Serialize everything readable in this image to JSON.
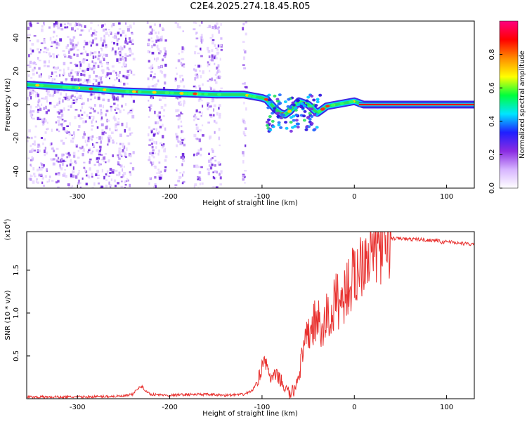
{
  "page_title": "C2E4.2025.274.18.45.R05",
  "chart_data": [
    {
      "id": "spectrogram",
      "type": "heatmap",
      "title": "C2E4.2025.274.18.45.R05",
      "xlabel": "Height of straight line (km)",
      "ylabel": "Frequency (Hz)",
      "xlim": [
        -355,
        130
      ],
      "ylim": [
        -50,
        50
      ],
      "x_ticks": [
        -300,
        -200,
        -100,
        0,
        100
      ],
      "x_tick_labels": [
        "-300",
        "-200",
        "-100",
        "0",
        "100"
      ],
      "y_ticks": [
        -40,
        -20,
        0,
        20,
        40
      ],
      "y_tick_labels": [
        "-40",
        "-20",
        "0",
        "20",
        "40"
      ],
      "grid": false,
      "colorbar": {
        "label": "Normalized spectral amplitude",
        "range": [
          0,
          1
        ],
        "ticks": [
          0.0,
          0.2,
          0.4,
          0.6,
          0.8
        ],
        "tick_labels": [
          "0.0",
          "0.2",
          "0.4",
          "0.6",
          "0.8"
        ],
        "colors": [
          "#ffffff",
          "#d7b5ff",
          "#8a2be2",
          "#1f1fff",
          "#00e5ff",
          "#00ff3c",
          "#ffff00",
          "#ff8c00",
          "#ff0000",
          "#ff0080"
        ]
      },
      "carrier_ridge": {
        "x": [
          -355,
          -300,
          -250,
          -200,
          -150,
          -120,
          -100,
          -95,
          -90,
          -85,
          -80,
          -75,
          -70,
          -60,
          -50,
          -40,
          -30,
          -20,
          -10,
          0,
          10,
          50,
          100,
          130
        ],
        "y": [
          12,
          10,
          8,
          7,
          6,
          6,
          4,
          3,
          0,
          -3,
          -5,
          -6,
          -4,
          2,
          0,
          -5,
          -1,
          0,
          1,
          2,
          0,
          0,
          0,
          0
        ]
      },
      "noise_regions_x": [
        [
          -355,
          -240
        ],
        [
          -225,
          -205
        ],
        [
          -195,
          -185
        ],
        [
          -175,
          -165
        ],
        [
          -160,
          -145
        ],
        [
          -122,
          -118
        ]
      ]
    },
    {
      "id": "snr",
      "type": "line",
      "xlabel": "Height of straight line (km)",
      "ylabel": "SNR (10 * v/v)",
      "y_multiplier": "(x10⁴)",
      "y_multiplier_base": "(x10",
      "y_multiplier_exp": "4",
      "y_multiplier_close": ")",
      "xlim": [
        -355,
        130
      ],
      "ylim": [
        0,
        1.95
      ],
      "x_ticks": [
        -300,
        -200,
        -100,
        0,
        100
      ],
      "x_tick_labels": [
        "-300",
        "-200",
        "-100",
        "0",
        "100"
      ],
      "y_ticks": [
        0.5,
        1.0,
        1.5
      ],
      "y_tick_labels": [
        "0.5",
        "1.0",
        "1.5"
      ],
      "grid": false,
      "series": [
        {
          "color": "#e8302e",
          "x": [
            -355,
            -300,
            -250,
            -240,
            -235,
            -230,
            -225,
            -220,
            -200,
            -180,
            -160,
            -140,
            -120,
            -110,
            -102,
            -98,
            -95,
            -90,
            -85,
            -80,
            -75,
            -70,
            -65,
            -60,
            -55,
            -50,
            -45,
            -40,
            -35,
            -30,
            -25,
            -20,
            -15,
            -10,
            -5,
            0,
            5,
            10,
            20,
            30,
            40,
            50,
            60,
            70,
            80,
            90,
            95,
            100,
            110,
            120,
            130
          ],
          "y": [
            0.02,
            0.02,
            0.03,
            0.05,
            0.12,
            0.14,
            0.08,
            0.05,
            0.04,
            0.05,
            0.05,
            0.04,
            0.05,
            0.1,
            0.28,
            0.5,
            0.38,
            0.22,
            0.28,
            0.22,
            0.12,
            0.05,
            0.1,
            0.3,
            0.55,
            0.75,
            0.85,
            0.95,
            0.7,
            1.0,
            0.9,
            1.2,
            1.1,
            1.25,
            1.35,
            1.4,
            1.55,
            1.7,
            1.8,
            1.85,
            1.87,
            1.87,
            1.86,
            1.86,
            1.85,
            1.85,
            1.82,
            1.84,
            1.82,
            1.81,
            1.8
          ]
        }
      ]
    }
  ]
}
